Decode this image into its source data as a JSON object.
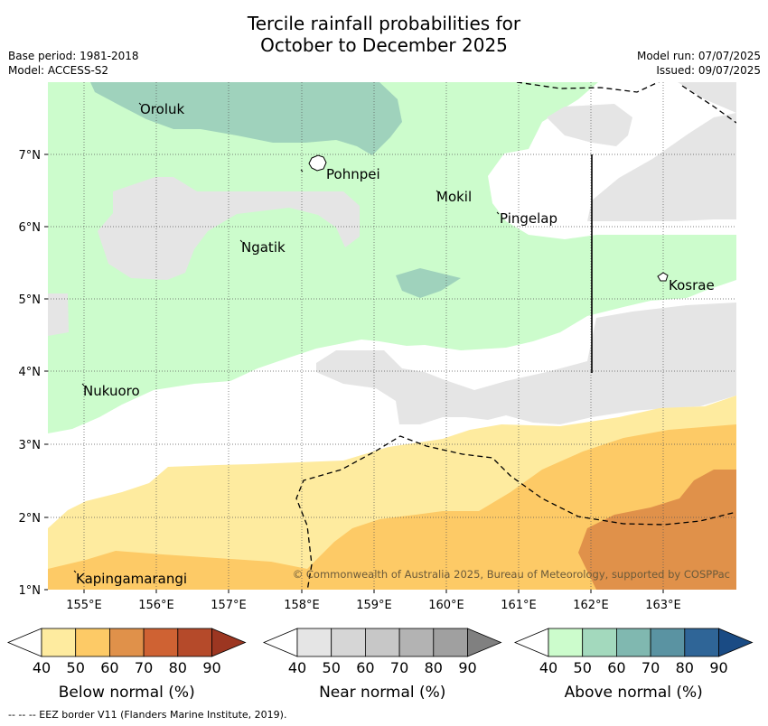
{
  "title": {
    "line1": "Tercile rainfall probabilities for",
    "line2": "October to December 2025"
  },
  "meta": {
    "base_period": "Base period: 1981-2018",
    "model": "Model: ACCESS-S2",
    "model_run": "Model run: 07/07/2025",
    "issued": "Issued: 09/07/2025"
  },
  "map": {
    "lat_labels": [
      "7°N",
      "6°N",
      "5°N",
      "4°N",
      "3°N",
      "2°N",
      "1°N"
    ],
    "lon_labels": [
      "155°E",
      "156°E",
      "157°E",
      "158°E",
      "159°E",
      "160°E",
      "161°E",
      "162°E",
      "163°E"
    ],
    "places": [
      "Oroluk",
      "Pohnpei",
      "Mokil",
      "Pingelap",
      "Ngatik",
      "Kosrae",
      "Nukuoro",
      "Kapingamarangi"
    ],
    "copyright": "© Commonwealth of Australia 2025, Bureau of Meteorology, supported by COSPPac",
    "colors": {
      "above_50": "#ccfccc",
      "above_60": "#9fd2bc",
      "near_50": "#e5e5e5",
      "below_50": "#feeb9f",
      "below_60": "#fdca66",
      "below_70": "#e0914a"
    }
  },
  "legends": [
    {
      "label": "Below normal (%)",
      "ticks": [
        "40",
        "50",
        "60",
        "70",
        "80",
        "90"
      ],
      "colors": [
        "#feeb9f",
        "#fdca66",
        "#e0914a",
        "#cf6233",
        "#b54a2a",
        "#9c3621"
      ]
    },
    {
      "label": "Near normal (%)",
      "ticks": [
        "40",
        "50",
        "60",
        "70",
        "80",
        "90"
      ],
      "colors": [
        "#e5e5e5",
        "#d6d6d6",
        "#c7c7c7",
        "#b3b3b3",
        "#a0a0a0",
        "#808080"
      ]
    },
    {
      "label": "Above normal (%)",
      "ticks": [
        "40",
        "50",
        "60",
        "70",
        "80",
        "90"
      ],
      "colors": [
        "#ccfccc",
        "#a3d9bd",
        "#80b8b0",
        "#5a93a2",
        "#2f6597",
        "#1a4b84"
      ]
    }
  ],
  "footnote": "--  --  -- EEZ border V11 (Flanders Marine Institute, 2019)."
}
